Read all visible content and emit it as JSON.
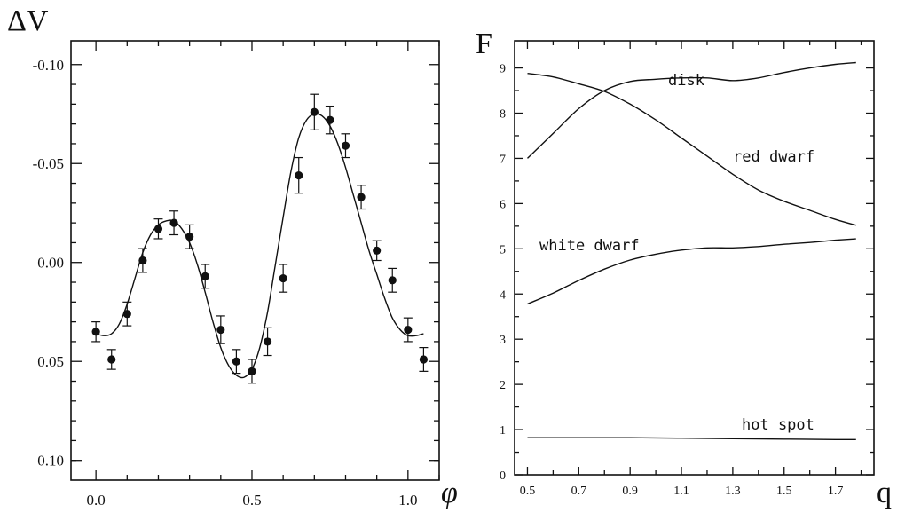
{
  "chart_data": [
    {
      "type": "scatter",
      "ylabel": "ΔV",
      "xlabel": "φ",
      "xlim": [
        -0.08,
        1.1
      ],
      "ylim": [
        -0.112,
        0.11
      ],
      "y_inverted": true,
      "xticks": [
        0.0,
        0.5,
        1.0
      ],
      "xtick_labels": [
        "0.0",
        "0.5",
        "1.0"
      ],
      "yticks": [
        -0.1,
        -0.05,
        0.0,
        0.05,
        0.1
      ],
      "ytick_labels": [
        "-0.10",
        "-0.05",
        "0.00",
        "0.05",
        "0.10"
      ],
      "points": [
        {
          "x": 0.0,
          "y": 0.035,
          "err": 0.005
        },
        {
          "x": 0.05,
          "y": 0.049,
          "err": 0.005
        },
        {
          "x": 0.1,
          "y": 0.026,
          "err": 0.006
        },
        {
          "x": 0.15,
          "y": -0.001,
          "err": 0.006
        },
        {
          "x": 0.2,
          "y": -0.017,
          "err": 0.005
        },
        {
          "x": 0.25,
          "y": -0.02,
          "err": 0.006
        },
        {
          "x": 0.3,
          "y": -0.013,
          "err": 0.006
        },
        {
          "x": 0.35,
          "y": 0.007,
          "err": 0.006
        },
        {
          "x": 0.4,
          "y": 0.034,
          "err": 0.007
        },
        {
          "x": 0.45,
          "y": 0.05,
          "err": 0.006
        },
        {
          "x": 0.5,
          "y": 0.055,
          "err": 0.006
        },
        {
          "x": 0.55,
          "y": 0.04,
          "err": 0.007
        },
        {
          "x": 0.6,
          "y": 0.008,
          "err": 0.007
        },
        {
          "x": 0.65,
          "y": -0.044,
          "err": 0.009
        },
        {
          "x": 0.7,
          "y": -0.076,
          "err": 0.009
        },
        {
          "x": 0.75,
          "y": -0.072,
          "err": 0.007
        },
        {
          "x": 0.8,
          "y": -0.059,
          "err": 0.006
        },
        {
          "x": 0.85,
          "y": -0.033,
          "err": 0.006
        },
        {
          "x": 0.9,
          "y": -0.006,
          "err": 0.005
        },
        {
          "x": 0.95,
          "y": 0.009,
          "err": 0.006
        },
        {
          "x": 1.0,
          "y": 0.034,
          "err": 0.006
        },
        {
          "x": 1.05,
          "y": 0.049,
          "err": 0.006
        }
      ],
      "fit_curve": {
        "x": [
          0.0,
          0.025,
          0.05,
          0.075,
          0.1,
          0.125,
          0.15,
          0.175,
          0.2,
          0.225,
          0.25,
          0.275,
          0.3,
          0.325,
          0.35,
          0.375,
          0.4,
          0.425,
          0.45,
          0.475,
          0.5,
          0.525,
          0.55,
          0.575,
          0.6,
          0.625,
          0.65,
          0.675,
          0.7,
          0.725,
          0.75,
          0.775,
          0.8,
          0.825,
          0.85,
          0.875,
          0.9,
          0.925,
          0.95,
          0.975,
          1.0,
          1.025,
          1.05
        ],
        "y": [
          0.036,
          0.037,
          0.036,
          0.031,
          0.021,
          0.008,
          -0.005,
          -0.014,
          -0.019,
          -0.021,
          -0.021,
          -0.017,
          -0.01,
          0.001,
          0.015,
          0.03,
          0.043,
          0.052,
          0.057,
          0.058,
          0.054,
          0.043,
          0.025,
          0.001,
          -0.023,
          -0.046,
          -0.063,
          -0.072,
          -0.075,
          -0.074,
          -0.069,
          -0.06,
          -0.048,
          -0.034,
          -0.02,
          -0.006,
          0.006,
          0.018,
          0.028,
          0.034,
          0.037,
          0.037,
          0.036
        ]
      }
    },
    {
      "type": "line",
      "ylabel": "F",
      "xlabel": "q",
      "xlim": [
        0.45,
        1.85
      ],
      "ylim": [
        0,
        9.6
      ],
      "xticks": [
        0.5,
        0.7,
        0.9,
        1.1,
        1.3,
        1.5,
        1.7
      ],
      "xtick_labels": [
        "0.5",
        "0.7",
        "0.9",
        "1.1",
        "1.3",
        "1.5",
        "1.7"
      ],
      "yticks": [
        0,
        1,
        2,
        3,
        4,
        5,
        6,
        7,
        8,
        9
      ],
      "ytick_labels": [
        "0",
        "1",
        "2",
        "3",
        "4",
        "5",
        "6",
        "7",
        "8",
        "9"
      ],
      "series": [
        {
          "name": "disk",
          "x": [
            0.5,
            0.6,
            0.7,
            0.8,
            0.9,
            1.0,
            1.1,
            1.2,
            1.3,
            1.4,
            1.5,
            1.6,
            1.7,
            1.78
          ],
          "y": [
            7.0,
            7.55,
            8.1,
            8.5,
            8.7,
            8.75,
            8.78,
            8.78,
            8.72,
            8.78,
            8.9,
            9.0,
            9.08,
            9.12
          ]
        },
        {
          "name": "red dwarf",
          "x": [
            0.5,
            0.6,
            0.7,
            0.8,
            0.9,
            1.0,
            1.1,
            1.2,
            1.3,
            1.4,
            1.5,
            1.6,
            1.7,
            1.78
          ],
          "y": [
            8.88,
            8.8,
            8.65,
            8.48,
            8.2,
            7.85,
            7.45,
            7.05,
            6.65,
            6.3,
            6.05,
            5.85,
            5.65,
            5.52
          ]
        },
        {
          "name": "white dwarf",
          "x": [
            0.5,
            0.6,
            0.7,
            0.8,
            0.9,
            1.0,
            1.1,
            1.2,
            1.3,
            1.4,
            1.5,
            1.6,
            1.7,
            1.78
          ],
          "y": [
            3.78,
            4.02,
            4.3,
            4.55,
            4.75,
            4.88,
            4.97,
            5.02,
            5.02,
            5.05,
            5.1,
            5.14,
            5.19,
            5.22
          ]
        },
        {
          "name": "hot spot",
          "x": [
            0.5,
            0.7,
            0.9,
            1.1,
            1.3,
            1.5,
            1.7,
            1.78
          ],
          "y": [
            0.82,
            0.82,
            0.82,
            0.81,
            0.8,
            0.79,
            0.78,
            0.78
          ]
        }
      ]
    }
  ]
}
